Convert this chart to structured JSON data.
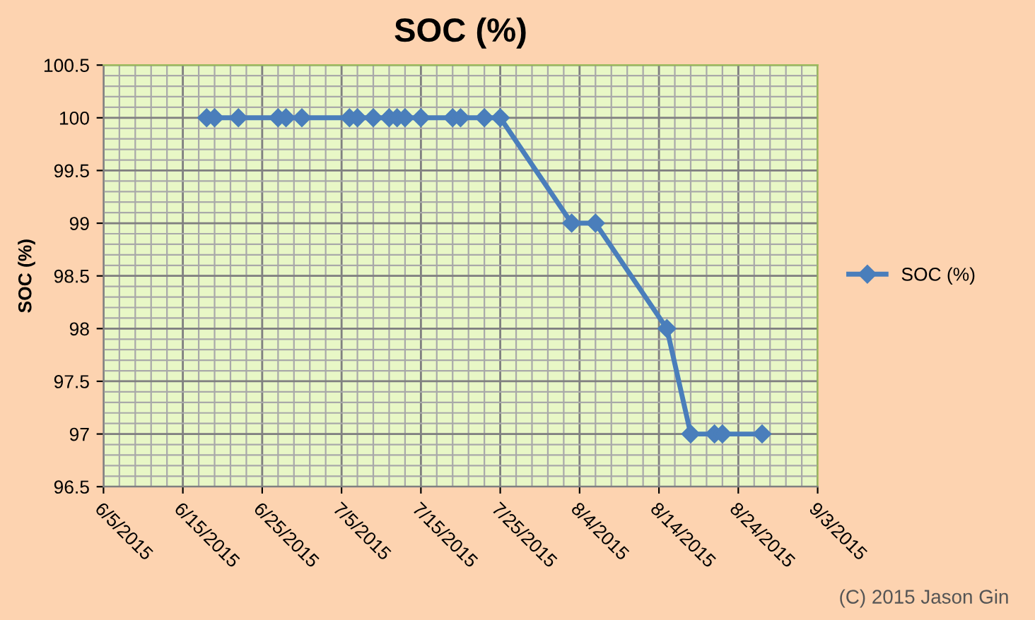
{
  "chart_data": {
    "type": "line",
    "title": "SOC (%)",
    "ylabel": "SOC (%)",
    "x": [
      "2015-06-18",
      "2015-06-19",
      "2015-06-22",
      "2015-06-27",
      "2015-06-28",
      "2015-06-30",
      "2015-07-06",
      "2015-07-07",
      "2015-07-09",
      "2015-07-11",
      "2015-07-12",
      "2015-07-13",
      "2015-07-15",
      "2015-07-19",
      "2015-07-20",
      "2015-07-23",
      "2015-07-25",
      "2015-08-03",
      "2015-08-06",
      "2015-08-15",
      "2015-08-18",
      "2015-08-21",
      "2015-08-22",
      "2015-08-27"
    ],
    "series": [
      {
        "name": "SOC (%)",
        "color": "#4a7ebb",
        "values": [
          100,
          100,
          100,
          100,
          100,
          100,
          100,
          100,
          100,
          100,
          100,
          100,
          100,
          100,
          100,
          100,
          100,
          99,
          99,
          98,
          97,
          97,
          97,
          97
        ]
      }
    ],
    "xlim": [
      "2015-06-05",
      "2015-09-03"
    ],
    "xticks": [
      {
        "value": "2015-06-05",
        "label": "6/5/2015"
      },
      {
        "value": "2015-06-15",
        "label": "6/15/2015"
      },
      {
        "value": "2015-06-25",
        "label": "6/25/2015"
      },
      {
        "value": "2015-07-05",
        "label": "7/5/2015"
      },
      {
        "value": "2015-07-15",
        "label": "7/15/2015"
      },
      {
        "value": "2015-07-25",
        "label": "7/25/2015"
      },
      {
        "value": "2015-08-04",
        "label": "8/4/2015"
      },
      {
        "value": "2015-08-14",
        "label": "8/14/2015"
      },
      {
        "value": "2015-08-24",
        "label": "8/24/2015"
      },
      {
        "value": "2015-09-03",
        "label": "9/3/2015"
      }
    ],
    "ylim": [
      96.5,
      100.5
    ],
    "yticks": [
      {
        "value": 96.5,
        "label": "96.5"
      },
      {
        "value": 97,
        "label": "97"
      },
      {
        "value": 97.5,
        "label": "97.5"
      },
      {
        "value": 98,
        "label": "98"
      },
      {
        "value": 98.5,
        "label": "98.5"
      },
      {
        "value": 99,
        "label": "99"
      },
      {
        "value": 99.5,
        "label": "99.5"
      },
      {
        "value": 100,
        "label": "100"
      },
      {
        "value": 100.5,
        "label": "100.5"
      }
    ],
    "grid": true,
    "legend": "right",
    "marker": "diamond",
    "line_style": "solid",
    "annotations": [
      "(C) 2015 Jason Gin"
    ]
  }
}
